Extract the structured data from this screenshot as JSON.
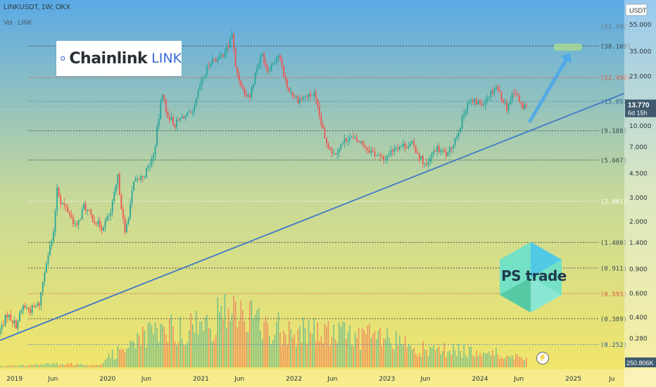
{
  "header": {
    "symbol": "LINKUSDT, 1W, OKX",
    "volume_label": "Vol · LINK",
    "currency": "USDT"
  },
  "logos": {
    "chainlink_name": "Chainlink",
    "chainlink_ticker": "LINK",
    "ps_trade": "PS trade"
  },
  "price_badge": {
    "price": "13.770",
    "countdown": "6d 15h",
    "color": "#3f5a6e"
  },
  "volume_badge": {
    "value": "250.806K",
    "color": "#3f5a6e"
  },
  "colors": {
    "up": "#26a69a",
    "down": "#ef5350",
    "trendline": "#3f78c8",
    "fib_dark": "#3a4a40",
    "fib_red": "#e05a44",
    "fib_blue": "#4a7ec8",
    "fib_white": "#ffffff",
    "arrow": "#4aa8ec",
    "target_box": "#a8d890"
  },
  "chart_data": {
    "type": "candlestick",
    "title": "LINKUSDT, 1W, OKX",
    "y_scale": "log",
    "ylim": [
      0.21,
      58
    ],
    "xlim": [
      "2018-11-05",
      "2025-07-20"
    ],
    "y_ticks": [
      "55.000",
      "35.000",
      "23.000",
      "15.000",
      "10.000",
      "7.000",
      "4.500",
      "3.000",
      "2.000",
      "1.400",
      "0.900",
      "0.600",
      "0.400",
      "0.280"
    ],
    "x_ticks": [
      {
        "label": "2019",
        "date": "2019-01-01"
      },
      {
        "label": "Jun",
        "date": "2019-06-01"
      },
      {
        "label": "2020",
        "date": "2020-01-01"
      },
      {
        "label": "Jun",
        "date": "2020-06-01"
      },
      {
        "label": "2021",
        "date": "2021-01-01"
      },
      {
        "label": "Jun",
        "date": "2021-06-01"
      },
      {
        "label": "2022",
        "date": "2022-01-01"
      },
      {
        "label": "Jun",
        "date": "2022-06-01"
      },
      {
        "label": "2023",
        "date": "2023-01-01"
      },
      {
        "label": "Jun",
        "date": "2023-06-01"
      },
      {
        "label": "2024",
        "date": "2024-01-01"
      },
      {
        "label": "Jun",
        "date": "2024-06-01"
      },
      {
        "label": "2025",
        "date": "2025-01-01"
      },
      {
        "label": "Ju",
        "date": "2025-06-01"
      }
    ],
    "fib_levels": [
      {
        "value": 52.992,
        "label": "(52.992)",
        "style": "none"
      },
      {
        "value": 38.169,
        "label": "(38.169)",
        "style": "dark"
      },
      {
        "value": 22.458,
        "label": "(22.458)",
        "style": "red"
      },
      {
        "value": 15.057,
        "label": "(15.057)",
        "style": "blue"
      },
      {
        "value": 9.188,
        "label": "(9.188)",
        "style": "dark"
      },
      {
        "value": 5.607,
        "label": "(5.607)",
        "style": "dark"
      },
      {
        "value": 2.801,
        "label": "(2.801)",
        "style": "white"
      },
      {
        "value": 1.4,
        "label": "(1.400)",
        "style": "dark"
      },
      {
        "value": 0.911,
        "label": "(0.911)",
        "style": "dark"
      },
      {
        "value": 0.593,
        "label": "(0.593)",
        "style": "red"
      },
      {
        "value": 0.389,
        "label": "(0.389)",
        "style": "dark"
      },
      {
        "value": 0.252,
        "label": "(0.252)",
        "style": "blue"
      }
    ],
    "last_price": 13.77,
    "trendline": [
      {
        "date": "2018-11-05",
        "price": 0.27
      },
      {
        "date": "2025-07-20",
        "price": 17.2
      }
    ],
    "projection_arrow": {
      "from": {
        "date": "2024-07-15",
        "price": 10.8
      },
      "to": {
        "date": "2024-12-20",
        "price": 34.0
      }
    },
    "target_zone": {
      "date_from": "2024-10-15",
      "date_to": "2025-02-05",
      "price_low": 35.3,
      "price_high": 39.6
    },
    "series": [
      {
        "name": "LINKUSDT",
        "anchors": [
          {
            "date": "2018-11-05",
            "price": 0.3
          },
          {
            "date": "2018-12-10",
            "price": 0.42
          },
          {
            "date": "2019-01-14",
            "price": 0.35
          },
          {
            "date": "2019-02-11",
            "price": 0.48
          },
          {
            "date": "2019-03-11",
            "price": 0.45
          },
          {
            "date": "2019-04-15",
            "price": 0.5
          },
          {
            "date": "2019-05-13",
            "price": 1.05
          },
          {
            "date": "2019-06-10",
            "price": 1.6
          },
          {
            "date": "2019-06-24",
            "price": 3.6
          },
          {
            "date": "2019-07-08",
            "price": 2.8
          },
          {
            "date": "2019-08-05",
            "price": 2.4
          },
          {
            "date": "2019-09-09",
            "price": 1.8
          },
          {
            "date": "2019-10-07",
            "price": 2.6
          },
          {
            "date": "2019-11-11",
            "price": 2.1
          },
          {
            "date": "2019-12-16",
            "price": 1.8
          },
          {
            "date": "2020-01-20",
            "price": 2.3
          },
          {
            "date": "2020-02-17",
            "price": 4.2
          },
          {
            "date": "2020-03-16",
            "price": 1.6
          },
          {
            "date": "2020-04-20",
            "price": 3.8
          },
          {
            "date": "2020-06-01",
            "price": 4.4
          },
          {
            "date": "2020-07-06",
            "price": 6.0
          },
          {
            "date": "2020-08-10",
            "price": 17.8
          },
          {
            "date": "2020-08-24",
            "price": 12.5
          },
          {
            "date": "2020-09-28",
            "price": 10.2
          },
          {
            "date": "2020-11-02",
            "price": 11.8
          },
          {
            "date": "2020-12-07",
            "price": 12.0
          },
          {
            "date": "2021-01-04",
            "price": 19.5
          },
          {
            "date": "2021-02-15",
            "price": 30.0
          },
          {
            "date": "2021-03-22",
            "price": 31.0
          },
          {
            "date": "2021-04-26",
            "price": 38.0
          },
          {
            "date": "2021-05-10",
            "price": 48.0
          },
          {
            "date": "2021-05-24",
            "price": 26.0
          },
          {
            "date": "2021-06-21",
            "price": 18.5
          },
          {
            "date": "2021-07-19",
            "price": 16.5
          },
          {
            "date": "2021-08-16",
            "price": 27.0
          },
          {
            "date": "2021-09-06",
            "price": 33.0
          },
          {
            "date": "2021-09-27",
            "price": 25.5
          },
          {
            "date": "2021-11-08",
            "price": 33.0
          },
          {
            "date": "2021-12-13",
            "price": 19.0
          },
          {
            "date": "2022-01-24",
            "price": 15.5
          },
          {
            "date": "2022-03-28",
            "price": 17.0
          },
          {
            "date": "2022-05-09",
            "price": 8.0
          },
          {
            "date": "2022-06-13",
            "price": 6.2
          },
          {
            "date": "2022-08-08",
            "price": 8.3
          },
          {
            "date": "2022-09-26",
            "price": 7.5
          },
          {
            "date": "2022-11-07",
            "price": 6.5
          },
          {
            "date": "2022-12-26",
            "price": 5.6
          },
          {
            "date": "2023-02-06",
            "price": 7.0
          },
          {
            "date": "2023-04-17",
            "price": 7.3
          },
          {
            "date": "2023-06-12",
            "price": 5.0
          },
          {
            "date": "2023-07-17",
            "price": 6.8
          },
          {
            "date": "2023-09-04",
            "price": 6.1
          },
          {
            "date": "2023-10-23",
            "price": 10.0
          },
          {
            "date": "2023-11-20",
            "price": 15.0
          },
          {
            "date": "2024-01-15",
            "price": 14.5
          },
          {
            "date": "2024-03-11",
            "price": 19.5
          },
          {
            "date": "2024-04-22",
            "price": 13.5
          },
          {
            "date": "2024-05-20",
            "price": 18.2
          },
          {
            "date": "2024-06-17",
            "price": 14.0
          },
          {
            "date": "2024-07-01",
            "price": 13.77
          }
        ]
      },
      {
        "name": "Volume",
        "anchors": [
          {
            "date": "2018-11-05",
            "volume": 0.015
          },
          {
            "date": "2019-06-01",
            "volume": 0.05
          },
          {
            "date": "2019-12-01",
            "volume": 0.04
          },
          {
            "date": "2020-03-16",
            "volume": 0.35
          },
          {
            "date": "2020-08-10",
            "volume": 0.55
          },
          {
            "date": "2021-01-15",
            "volume": 0.6
          },
          {
            "date": "2021-05-15",
            "volume": 0.9
          },
          {
            "date": "2021-09-01",
            "volume": 0.6
          },
          {
            "date": "2022-01-15",
            "volume": 0.55
          },
          {
            "date": "2022-06-15",
            "volume": 0.5
          },
          {
            "date": "2022-11-15",
            "volume": 0.45
          },
          {
            "date": "2023-06-15",
            "volume": 0.25
          },
          {
            "date": "2023-12-01",
            "volume": 0.25
          },
          {
            "date": "2024-03-15",
            "volume": 0.2
          },
          {
            "date": "2024-07-01",
            "volume": 0.1
          }
        ]
      }
    ]
  }
}
